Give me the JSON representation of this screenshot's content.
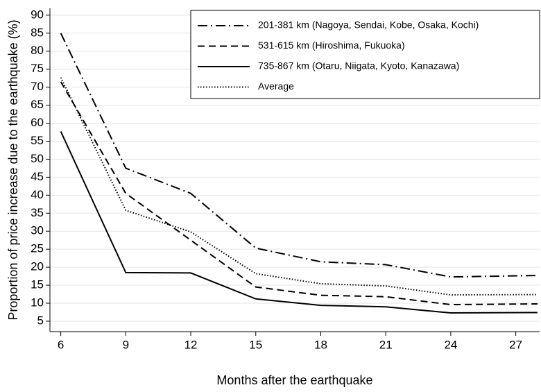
{
  "chart_data": {
    "type": "line",
    "xlabel": "Months after the earthquake",
    "ylabel": "Proportion of price increase due to the earthquake (%)",
    "x": [
      6,
      9,
      12,
      15,
      18,
      21,
      24,
      28
    ],
    "series": [
      {
        "name": "201-381 km (Nagoya, Sendai, Kobe, Osaka, Kochi)",
        "color": "#000000",
        "dash": "dashdot",
        "values": [
          85,
          47.5,
          40.5,
          25.3,
          21.5,
          20.7,
          17.3,
          17.7
        ]
      },
      {
        "name": "531-615 km (Hiroshima, Fukuoka)",
        "color": "#000000",
        "dash": "dash",
        "values": [
          71.5,
          40.5,
          27.5,
          14.5,
          12.2,
          11.8,
          9.6,
          9.8
        ]
      },
      {
        "name": "735-867 km (Otaru, Niigata, Kyoto, Kanazawa)",
        "color": "#000000",
        "dash": "solid",
        "values": [
          57.7,
          18.5,
          18.4,
          11.2,
          9.4,
          9.0,
          7.3,
          7.4
        ]
      },
      {
        "name": "Average",
        "color": "#000000",
        "dash": "dot",
        "values": [
          72.7,
          35.8,
          29.8,
          18.2,
          15.4,
          14.8,
          12.3,
          12.4
        ]
      }
    ],
    "xlim": [
      5.5,
      28.1
    ],
    "ylim": [
      2.1,
      91.9
    ],
    "xticks": [
      6,
      9,
      12,
      15,
      18,
      21,
      24,
      27
    ],
    "yticks": [
      5,
      10,
      15,
      20,
      25,
      30,
      35,
      40,
      45,
      50,
      55,
      60,
      65,
      70,
      75,
      80,
      85,
      90
    ],
    "grid": true,
    "legend": "top-right"
  }
}
